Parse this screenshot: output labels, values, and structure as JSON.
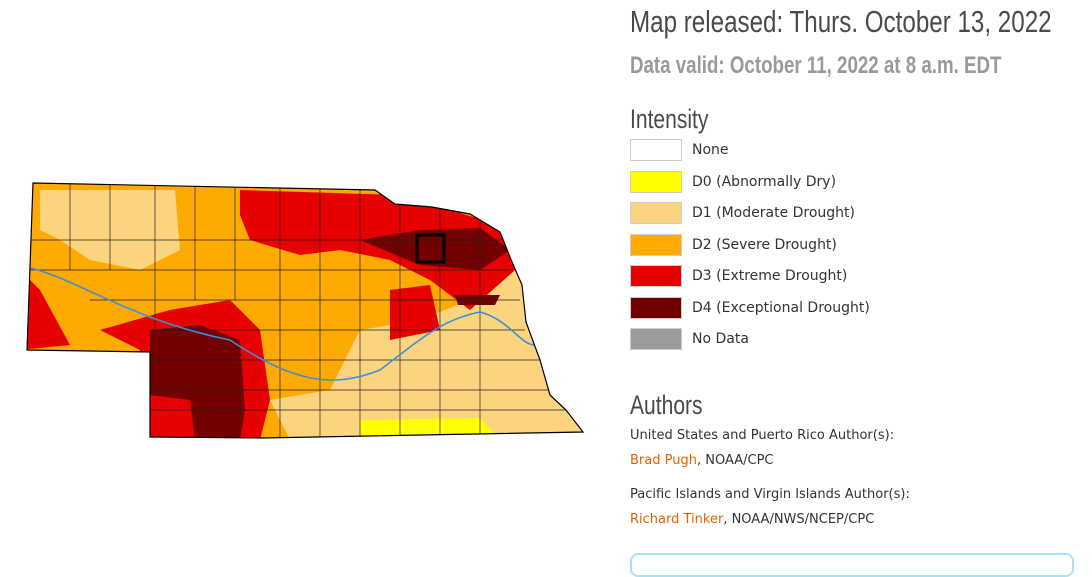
{
  "header": {
    "title": "Map released: Thurs. October 13, 2022",
    "subtitle": "Data valid: October 11, 2022 at 8 a.m. EDT"
  },
  "legend": {
    "title": "Intensity",
    "items": [
      {
        "label": "None",
        "color": "#ffffff"
      },
      {
        "label": "D0 (Abnormally Dry)",
        "color": "#ffff00"
      },
      {
        "label": "D1 (Moderate Drought)",
        "color": "#fcd37f"
      },
      {
        "label": "D2 (Severe Drought)",
        "color": "#ffaa00"
      },
      {
        "label": "D3 (Extreme Drought)",
        "color": "#e60000"
      },
      {
        "label": "D4 (Exceptional Drought)",
        "color": "#730000"
      },
      {
        "label": "No Data",
        "color": "#9b9b9b"
      }
    ]
  },
  "authors": {
    "title": "Authors",
    "groups": [
      {
        "heading": "United States and Puerto Rico Author(s):",
        "name": "Brad Pugh",
        "affiliation": ", NOAA/CPC"
      },
      {
        "heading": "Pacific Islands and Virgin Islands Author(s):",
        "name": "Richard Tinker",
        "affiliation": ", NOAA/NWS/NCEP/CPC"
      }
    ]
  }
}
